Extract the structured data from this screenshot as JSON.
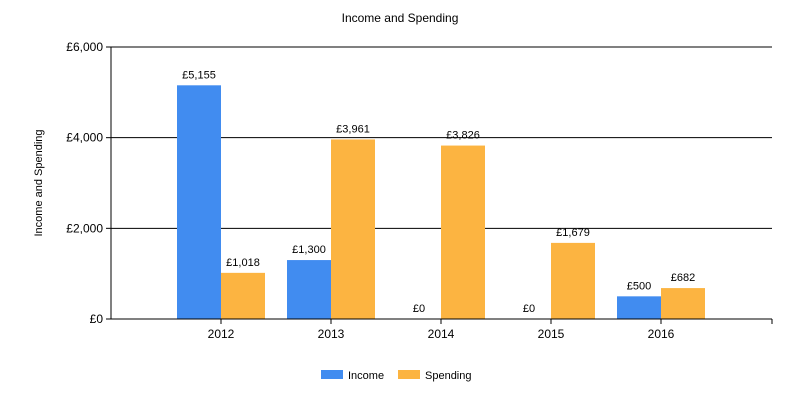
{
  "chart_data": {
    "type": "bar",
    "title": "Income and Spending",
    "xlabel": "",
    "ylabel": "Income and Spending",
    "categories": [
      "2012",
      "2013",
      "2014",
      "2015",
      "2016"
    ],
    "series": [
      {
        "name": "Income",
        "color": "#418cf0",
        "values": [
          5155,
          1300,
          0,
          0,
          500
        ],
        "labels": [
          "£5,155",
          "£1,300",
          "£0",
          "£0",
          "£500"
        ]
      },
      {
        "name": "Spending",
        "color": "#fcb441",
        "values": [
          1018,
          3961,
          3826,
          1679,
          682
        ],
        "labels": [
          "£1,018",
          "£3,961",
          "£3,826",
          "£1,679",
          "£682"
        ]
      }
    ],
    "ylim": [
      0,
      6000
    ],
    "yticks": [
      0,
      2000,
      4000,
      6000
    ],
    "ytick_labels": [
      "£0",
      "£2,000",
      "£4,000",
      "£6,000"
    ],
    "grid": true,
    "legend": "bottom"
  }
}
